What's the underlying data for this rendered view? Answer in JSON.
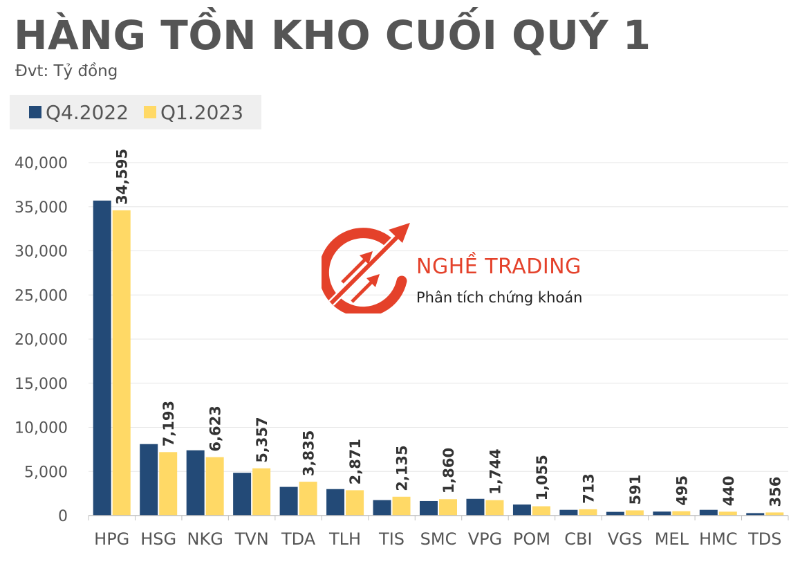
{
  "title": "HÀNG TỒN KHO CUỐI QUÝ 1",
  "unit_label": "Đvt: Tỷ đồng",
  "brand": {
    "name": "NGHỀ TRADING",
    "tagline": "Phân tích chứng khoán",
    "color": "#e4412a"
  },
  "colors": {
    "q4_2022": "#234a77",
    "q1_2023": "#ffd966"
  },
  "chart_data": {
    "type": "bar",
    "title": "HÀNG TỒN KHO CUỐI QUÝ 1",
    "ylabel": "",
    "xlabel": "",
    "ylim": [
      0,
      40000
    ],
    "yticks": [
      0,
      5000,
      10000,
      15000,
      20000,
      25000,
      30000,
      35000,
      40000
    ],
    "ytick_labels": [
      "0",
      "5,000",
      "10,000",
      "15,000",
      "20,000",
      "25,000",
      "30,000",
      "35,000",
      "40,000"
    ],
    "grid": true,
    "legend_position": "top-left",
    "categories": [
      "HPG",
      "HSG",
      "NKG",
      "TVN",
      "TDA",
      "TLH",
      "TIS",
      "SMC",
      "VPG",
      "POM",
      "CBI",
      "VGS",
      "MEL",
      "HMC",
      "TDS"
    ],
    "series": [
      {
        "name": "Q4.2022",
        "color": "#234a77",
        "values": [
          35700,
          8100,
          7400,
          4850,
          3250,
          3000,
          1750,
          1650,
          1900,
          1250,
          650,
          420,
          450,
          650,
          280
        ]
      },
      {
        "name": "Q1.2023",
        "color": "#ffd966",
        "values": [
          34595,
          7193,
          6623,
          5357,
          3835,
          2871,
          2135,
          1860,
          1744,
          1055,
          713,
          591,
          495,
          440,
          356
        ],
        "data_labels": [
          "34,595",
          "7,193",
          "6,623",
          "5,357",
          "3,835",
          "2,871",
          "2,135",
          "1,860",
          "1,744",
          "1,055",
          "713",
          "591",
          "495",
          "440",
          "356"
        ]
      }
    ]
  }
}
